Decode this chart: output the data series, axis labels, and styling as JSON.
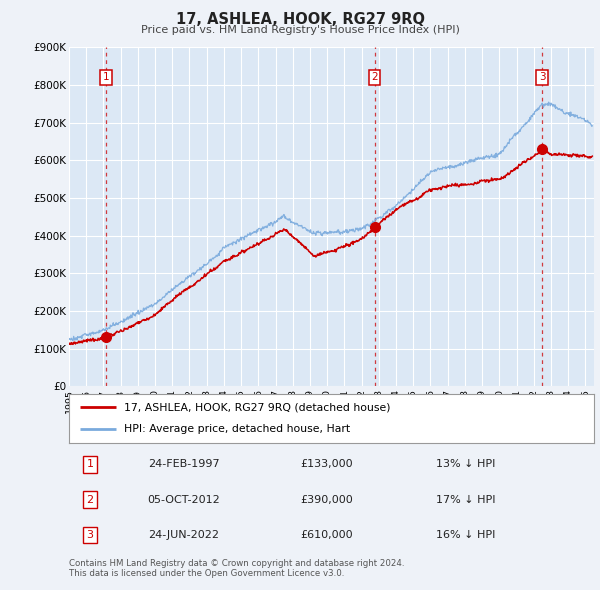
{
  "title": "17, ASHLEA, HOOK, RG27 9RQ",
  "subtitle": "Price paid vs. HM Land Registry's House Price Index (HPI)",
  "ylim": [
    0,
    900000
  ],
  "yticks": [
    0,
    100000,
    200000,
    300000,
    400000,
    500000,
    600000,
    700000,
    800000,
    900000
  ],
  "ytick_labels": [
    "£0",
    "£100K",
    "£200K",
    "£300K",
    "£400K",
    "£500K",
    "£600K",
    "£700K",
    "£800K",
    "£900K"
  ],
  "xlim_start": 1995.0,
  "xlim_end": 2025.5,
  "background_color": "#eef2f8",
  "plot_bg_color": "#dce8f5",
  "grid_color": "#ffffff",
  "sale_color": "#cc0000",
  "hpi_color": "#7aaadd",
  "vline_color": "#cc0000",
  "transactions": [
    {
      "num": 1,
      "date": "24-FEB-1997",
      "price": 133000,
      "price_str": "£133,000",
      "pct": "13%",
      "x": 1997.15
    },
    {
      "num": 2,
      "date": "05-OCT-2012",
      "price": 390000,
      "price_str": "£390,000",
      "pct": "17%",
      "x": 2012.75
    },
    {
      "num": 3,
      "date": "24-JUN-2022",
      "price": 610000,
      "price_str": "£610,000",
      "pct": "16%",
      "x": 2022.48
    }
  ],
  "footer_line1": "Contains HM Land Registry data © Crown copyright and database right 2024.",
  "footer_line2": "This data is licensed under the Open Government Licence v3.0.",
  "legend_entry1": "17, ASHLEA, HOOK, RG27 9RQ (detached house)",
  "legend_entry2": "HPI: Average price, detached house, Hart"
}
